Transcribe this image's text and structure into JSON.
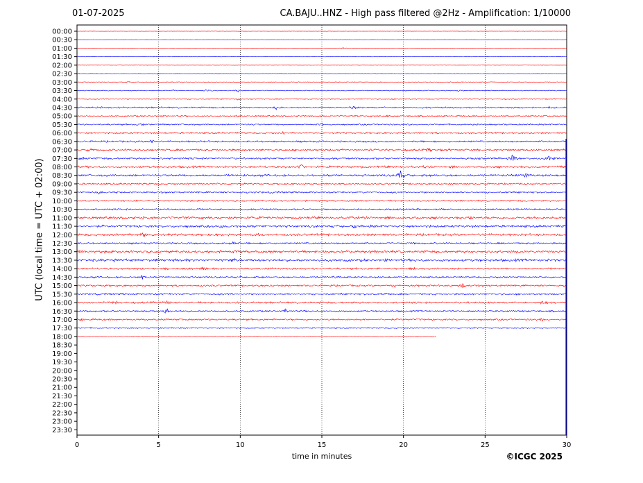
{
  "header": {
    "date": "01-07-2025",
    "title": "CA.BAJU..HNZ - High pass filtered @2Hz - Amplification: 1/10000"
  },
  "footer": {
    "copyright": "©ICGC 2025"
  },
  "colors": {
    "odd_row": "#ff0000",
    "even_row": "#0000ff",
    "grid": "#000000"
  },
  "chart_data": {
    "type": "line",
    "title": "CA.BAJU..HNZ - High pass filtered @2Hz - Amplification: 1/10000",
    "xlabel": "time in minutes",
    "ylabel": "UTC (local time = UTC + 02:00)",
    "xlim": [
      0,
      30
    ],
    "x_ticks": [
      0,
      5,
      10,
      15,
      20,
      25,
      30
    ],
    "vertical_grid": "dotted at 5-minute ticks",
    "row_labels": [
      "00:00",
      "00:30",
      "01:00",
      "01:30",
      "02:00",
      "02:30",
      "03:00",
      "03:30",
      "04:00",
      "04:30",
      "05:00",
      "05:30",
      "06:00",
      "06:30",
      "07:00",
      "07:30",
      "08:00",
      "08:30",
      "09:00",
      "09:30",
      "10:00",
      "10:30",
      "11:00",
      "11:30",
      "12:00",
      "12:30",
      "13:00",
      "13:30",
      "14:00",
      "14:30",
      "15:00",
      "15:30",
      "16:00",
      "16:30",
      "17:00",
      "17:30",
      "18:00",
      "18:30",
      "19:00",
      "19:30",
      "20:00",
      "20:30",
      "21:00",
      "21:30",
      "22:00",
      "22:30",
      "23:00",
      "23:30"
    ],
    "row_colors_alternate": [
      "red",
      "blue"
    ],
    "series": [
      {
        "row": "00:00",
        "end_min": 30,
        "noise": 0.2,
        "events": []
      },
      {
        "row": "00:30",
        "end_min": 30,
        "noise": 0.2,
        "events": []
      },
      {
        "row": "01:00",
        "end_min": 30,
        "noise": 0.2,
        "events": [
          {
            "t": 16.3,
            "amp": 1.2
          }
        ]
      },
      {
        "row": "01:30",
        "end_min": 30,
        "noise": 0.2,
        "events": []
      },
      {
        "row": "02:00",
        "end_min": 30,
        "noise": 0.2,
        "events": []
      },
      {
        "row": "02:30",
        "end_min": 30,
        "noise": 0.4,
        "events": [
          {
            "t": 4.9,
            "amp": 1.5
          },
          {
            "t": 8.0,
            "amp": 1
          }
        ]
      },
      {
        "row": "03:00",
        "end_min": 30,
        "noise": 0.5,
        "events": [
          {
            "t": 3.1,
            "amp": 1.2
          },
          {
            "t": 18.5,
            "amp": 1.5
          }
        ]
      },
      {
        "row": "03:30",
        "end_min": 30,
        "noise": 0.6,
        "events": [
          {
            "t": 5.9,
            "amp": 1.5
          },
          {
            "t": 7.9,
            "amp": 1.5
          },
          {
            "t": 9.9,
            "amp": 1.5
          },
          {
            "t": 23.5,
            "amp": 1.2
          }
        ]
      },
      {
        "row": "04:00",
        "end_min": 30,
        "noise": 0.7,
        "events": [
          {
            "t": 9.9,
            "amp": 2
          }
        ]
      },
      {
        "row": "04:30",
        "end_min": 30,
        "noise": 1.1,
        "events": [
          {
            "t": 1.4,
            "amp": 2.2
          },
          {
            "t": 12.2,
            "amp": 2.5
          },
          {
            "t": 16.9,
            "amp": 2.2
          },
          {
            "t": 29.0,
            "amp": 2
          }
        ]
      },
      {
        "row": "05:00",
        "end_min": 30,
        "noise": 1.0,
        "events": [
          {
            "t": 9.9,
            "amp": 2.5
          },
          {
            "t": 19.1,
            "amp": 2
          }
        ]
      },
      {
        "row": "05:30",
        "end_min": 30,
        "noise": 1.0,
        "events": [
          {
            "t": 3.9,
            "amp": 2.2
          },
          {
            "t": 15.0,
            "amp": 2.5
          }
        ]
      },
      {
        "row": "06:00",
        "end_min": 30,
        "noise": 1.2,
        "events": [
          {
            "t": 12.7,
            "amp": 3
          }
        ]
      },
      {
        "row": "06:30",
        "end_min": 30,
        "noise": 1.2,
        "events": [
          {
            "t": 4.6,
            "amp": 2.5
          }
        ]
      },
      {
        "row": "07:00",
        "end_min": 30,
        "noise": 1.4,
        "events": [
          {
            "t": 0.8,
            "amp": 2.2
          },
          {
            "t": 21.5,
            "amp": 2.5
          }
        ]
      },
      {
        "row": "07:30",
        "end_min": 30,
        "noise": 1.3,
        "events": [
          {
            "t": 0.4,
            "amp": 2
          },
          {
            "t": 26.7,
            "amp": 10
          },
          {
            "t": 28.9,
            "amp": 6
          }
        ]
      },
      {
        "row": "08:00",
        "end_min": 30,
        "noise": 1.5,
        "events": [
          {
            "t": 13.7,
            "amp": 5
          },
          {
            "t": 21.2,
            "amp": 2.5
          }
        ]
      },
      {
        "row": "08:30",
        "end_min": 30,
        "noise": 1.5,
        "events": [
          {
            "t": 19.8,
            "amp": 9
          },
          {
            "t": 27.5,
            "amp": 3
          }
        ]
      },
      {
        "row": "09:00",
        "end_min": 30,
        "noise": 1.1,
        "events": []
      },
      {
        "row": "09:30",
        "end_min": 30,
        "noise": 1.2,
        "events": [
          {
            "t": 1.3,
            "amp": 2.5
          }
        ]
      },
      {
        "row": "10:00",
        "end_min": 30,
        "noise": 1.1,
        "events": []
      },
      {
        "row": "10:30",
        "end_min": 30,
        "noise": 1.1,
        "events": [
          {
            "t": 7.4,
            "amp": 2.5
          }
        ]
      },
      {
        "row": "11:00",
        "end_min": 30,
        "noise": 1.6,
        "events": [
          {
            "t": 4.0,
            "amp": 2.5
          },
          {
            "t": 24.0,
            "amp": 2
          }
        ]
      },
      {
        "row": "11:30",
        "end_min": 30,
        "noise": 1.7,
        "events": [
          {
            "t": 8.9,
            "amp": 4
          },
          {
            "t": 17.0,
            "amp": 2.5
          }
        ]
      },
      {
        "row": "12:00",
        "end_min": 30,
        "noise": 1.6,
        "events": [
          {
            "t": 4.0,
            "amp": 4
          },
          {
            "t": 11.0,
            "amp": 2.5
          }
        ]
      },
      {
        "row": "12:30",
        "end_min": 30,
        "noise": 1.2,
        "events": [
          {
            "t": 9.6,
            "amp": 2.5
          }
        ]
      },
      {
        "row": "13:00",
        "end_min": 30,
        "noise": 1.7,
        "events": [
          {
            "t": 0.2,
            "amp": 4
          },
          {
            "t": 27.3,
            "amp": 2.5
          }
        ]
      },
      {
        "row": "13:30",
        "end_min": 30,
        "noise": 1.8,
        "events": [
          {
            "t": 2.4,
            "amp": 3
          },
          {
            "t": 9.6,
            "amp": 3
          }
        ]
      },
      {
        "row": "14:00",
        "end_min": 30,
        "noise": 1.3,
        "events": [
          {
            "t": 7.8,
            "amp": 2.5
          },
          {
            "t": 20.6,
            "amp": 2.5
          }
        ]
      },
      {
        "row": "14:30",
        "end_min": 30,
        "noise": 1.2,
        "events": [
          {
            "t": 4.0,
            "amp": 4
          },
          {
            "t": 15.8,
            "amp": 2.5
          }
        ]
      },
      {
        "row": "15:00",
        "end_min": 30,
        "noise": 1.2,
        "events": [
          {
            "t": 19.4,
            "amp": 3
          },
          {
            "t": 23.6,
            "amp": 4
          }
        ]
      },
      {
        "row": "15:30",
        "end_min": 30,
        "noise": 1.2,
        "events": [
          {
            "t": 19.0,
            "amp": 2.5
          }
        ]
      },
      {
        "row": "16:00",
        "end_min": 30,
        "noise": 1.3,
        "events": [
          {
            "t": 2.4,
            "amp": 2.5
          },
          {
            "t": 5.5,
            "amp": 2.5
          },
          {
            "t": 28.5,
            "amp": 3
          }
        ]
      },
      {
        "row": "16:30",
        "end_min": 30,
        "noise": 1.1,
        "events": [
          {
            "t": 5.5,
            "amp": 7
          },
          {
            "t": 12.8,
            "amp": 2.5
          }
        ]
      },
      {
        "row": "17:00",
        "end_min": 30,
        "noise": 1.2,
        "events": [
          {
            "t": 0.3,
            "amp": 2
          },
          {
            "t": 28.4,
            "amp": 3
          }
        ]
      },
      {
        "row": "17:30",
        "end_min": 30,
        "noise": 0.8,
        "events": []
      },
      {
        "row": "18:00",
        "end_min": 22,
        "noise": 0.3,
        "events": []
      }
    ]
  }
}
